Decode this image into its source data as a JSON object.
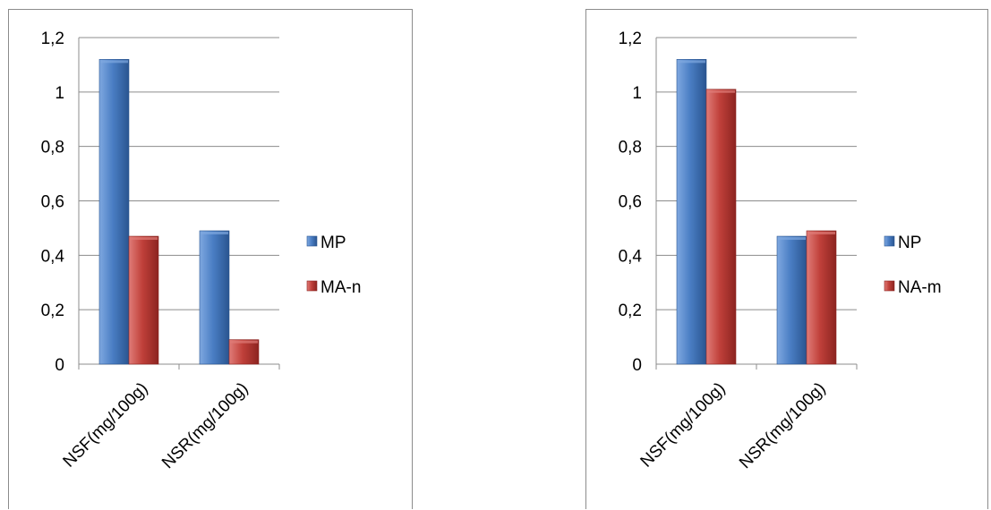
{
  "chart_data": [
    {
      "type": "bar",
      "categories": [
        "NSF(mg/100g)",
        "NSR(mg/100g)"
      ],
      "series": [
        {
          "name": "MP",
          "values": [
            1.12,
            0.49
          ]
        },
        {
          "name": "MA-n",
          "values": [
            0.47,
            0.09
          ]
        }
      ],
      "ylim": [
        0,
        1.2
      ],
      "yticks": [
        "0",
        "0,2",
        "0,4",
        "0,6",
        "0,8",
        "1",
        "1,2"
      ],
      "grid": true,
      "legend": "right"
    },
    {
      "type": "bar",
      "categories": [
        "NSF(mg/100g)",
        "NSR(mg/100g)"
      ],
      "series": [
        {
          "name": "NP",
          "values": [
            1.12,
            0.47
          ]
        },
        {
          "name": "NA-m",
          "values": [
            1.01,
            0.49
          ]
        }
      ],
      "ylim": [
        0,
        1.2
      ],
      "yticks": [
        "0",
        "0,2",
        "0,4",
        "0,6",
        "0,8",
        "1",
        "1,2"
      ],
      "grid": true,
      "legend": "right"
    }
  ],
  "colors": {
    "series_0": {
      "light": "#7fa8e0",
      "main": "#4a7ec4",
      "dark": "#2a5590"
    },
    "series_1": {
      "light": "#e07c78",
      "main": "#c0403a",
      "dark": "#8c2420"
    },
    "grid": "#8c8c8c"
  }
}
